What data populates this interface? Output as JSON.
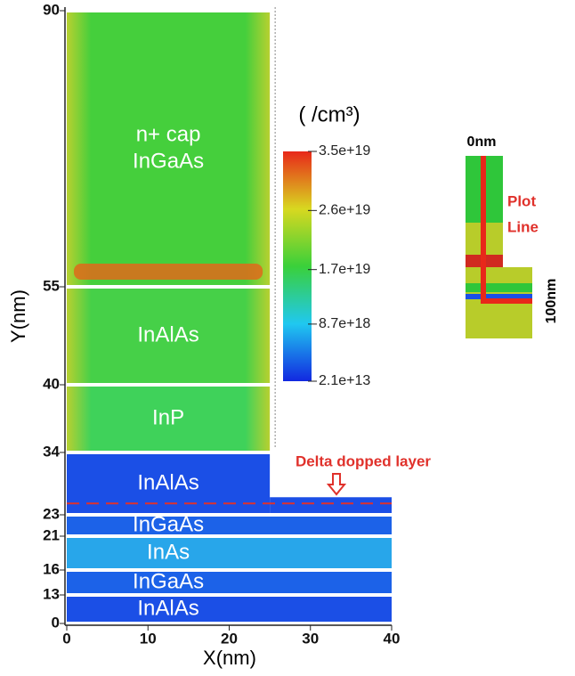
{
  "chart_data": {
    "type": "layer-map",
    "x_label": "X(nm)",
    "y_label": "Y(nm)",
    "xlim": [
      0,
      40
    ],
    "xticks": [
      0,
      10,
      20,
      30,
      40
    ],
    "ylim": [
      0,
      90
    ],
    "yticks": [
      0,
      13,
      16,
      21,
      23,
      34,
      40,
      55,
      90
    ],
    "layers": [
      {
        "label": [
          "n+ cap",
          "InGaAs"
        ],
        "x": [
          0,
          25
        ],
        "y": [
          55,
          90
        ],
        "color": "#45cf3c"
      },
      {
        "label": [
          "InAlAs"
        ],
        "x": [
          0,
          25
        ],
        "y": [
          40,
          55
        ],
        "color": "#46d048"
      },
      {
        "label": [
          "InP"
        ],
        "x": [
          0,
          25
        ],
        "y": [
          34,
          40
        ],
        "color": "#3fd25a"
      },
      {
        "label": [
          "InAlAs"
        ],
        "x": [
          0,
          25
        ],
        "y": [
          23,
          34
        ],
        "color": "#1b4fe6"
      },
      {
        "label": [
          "InGaAs"
        ],
        "x": [
          0,
          40
        ],
        "y": [
          21,
          23
        ],
        "color": "#1c62e8"
      },
      {
        "label": [
          "InAs"
        ],
        "x": [
          0,
          40
        ],
        "y": [
          16,
          21
        ],
        "color": "#28a6ea"
      },
      {
        "label": [
          "InGaAs"
        ],
        "x": [
          0,
          40
        ],
        "y": [
          13,
          16
        ],
        "color": "#1c62e8"
      },
      {
        "label": [
          "InAlAs"
        ],
        "x": [
          0,
          40
        ],
        "y": [
          0,
          13
        ],
        "color": "#1b4fe6"
      }
    ],
    "delta_layer": {
      "label": "Delta dopped layer",
      "y": 25,
      "color": "#e0312b"
    },
    "colorbar": {
      "title": "( /cm³)",
      "clim": [
        21000000000000.0,
        3.5e+19
      ],
      "colors": [
        "#1228e0",
        "#20c8f0",
        "#3ad03a",
        "#d8d820",
        "#e8281a"
      ],
      "ticks": [
        {
          "value": 3.5e+19,
          "label": "3.5e+19"
        },
        {
          "value": 2.6e+19,
          "label": "2.6e+19"
        },
        {
          "value": 1.7e+19,
          "label": "1.7e+19"
        },
        {
          "value": 8.7e+18,
          "label": "8.7e+18"
        },
        {
          "value": 21000000000000.0,
          "label": "2.1e+13"
        }
      ]
    },
    "inset": {
      "top_label": "0nm",
      "bottom_label": "100nm",
      "line_label": [
        "Plot",
        "Line"
      ]
    }
  }
}
